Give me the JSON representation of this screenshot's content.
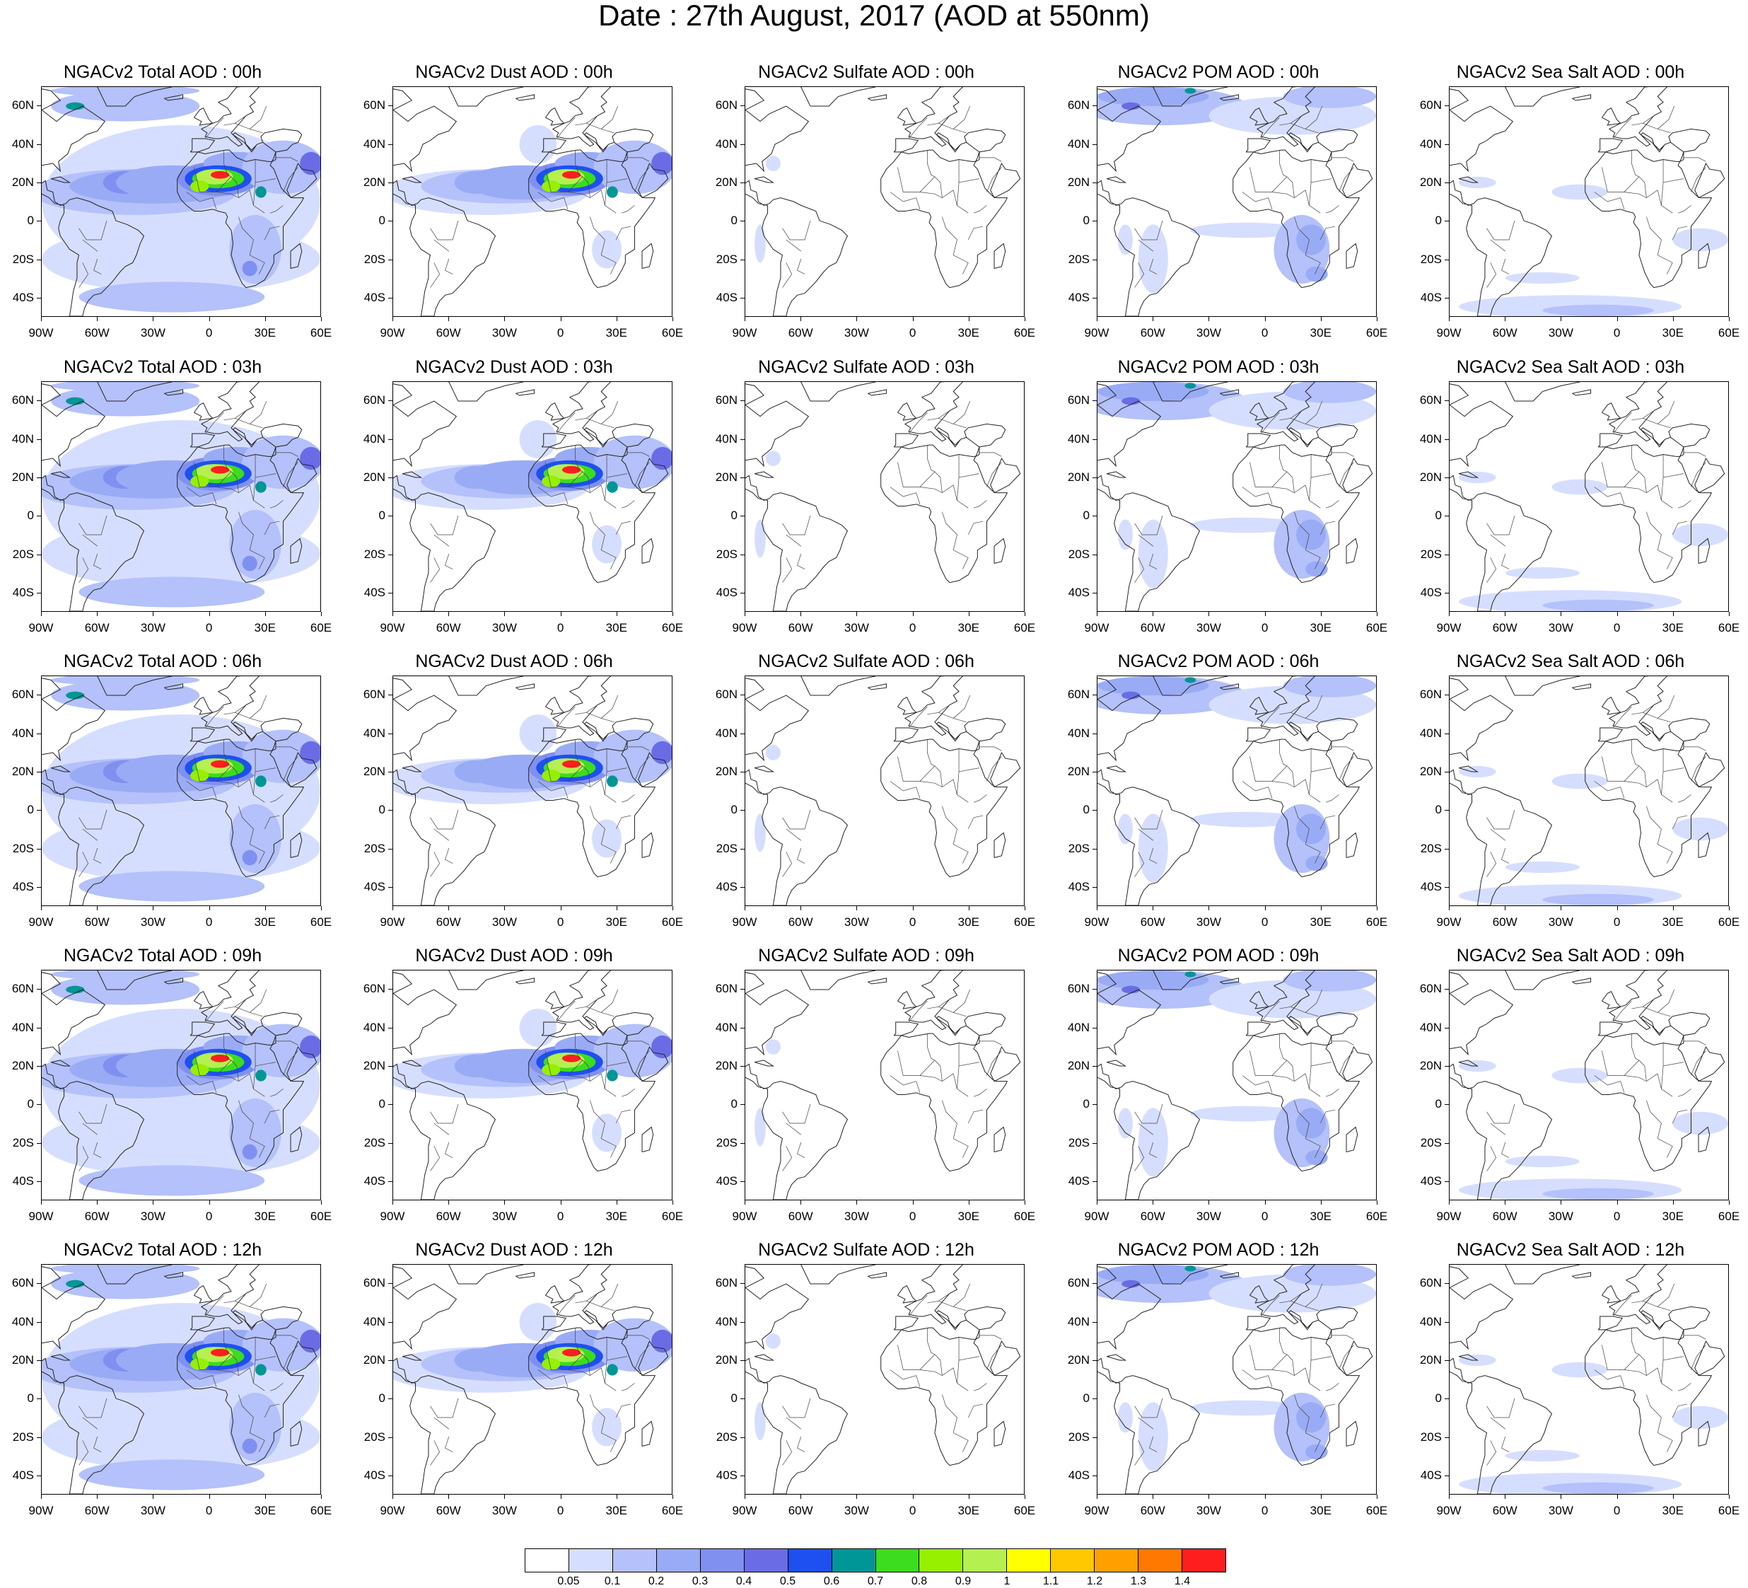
{
  "title": "Date : 27th August, 2017 (AOD at 550nm)",
  "panels": [
    [
      "NGACv2 Total AOD : 00h",
      "NGACv2 Dust AOD : 00h",
      "NGACv2 Sulfate AOD : 00h",
      "NGACv2 POM AOD : 00h",
      "NGACv2 Sea Salt AOD : 00h"
    ],
    [
      "NGACv2 Total AOD : 03h",
      "NGACv2 Dust AOD : 03h",
      "NGACv2 Sulfate AOD : 03h",
      "NGACv2 POM AOD : 03h",
      "NGACv2 Sea Salt AOD : 03h"
    ],
    [
      "NGACv2 Total AOD : 06h",
      "NGACv2 Dust AOD : 06h",
      "NGACv2 Sulfate AOD : 06h",
      "NGACv2 POM AOD : 06h",
      "NGACv2 Sea Salt AOD : 06h"
    ],
    [
      "NGACv2 Total AOD : 09h",
      "NGACv2 Dust AOD : 09h",
      "NGACv2 Sulfate AOD : 09h",
      "NGACv2 POM AOD : 09h",
      "NGACv2 Sea Salt  AOD : 09h"
    ],
    [
      "NGACv2 Total AOD  : 12h",
      "NGACv2 Dust AOD : 12h",
      "NGACv2 Sulfate AOD : 12h",
      "NGACv2 POM  AOD : 12h",
      "NGACv2 Sea Salt  AOD : 12h"
    ]
  ],
  "lat_labels": [
    "60N",
    "40N",
    "20N",
    "0",
    "20S",
    "40S"
  ],
  "lat_values": [
    60,
    40,
    20,
    0,
    -20,
    -40
  ],
  "lat_range": [
    -50,
    70
  ],
  "lon_labels": [
    "90W",
    "60W",
    "30W",
    "0",
    "30E",
    "60E"
  ],
  "lon_values": [
    -90,
    -60,
    -30,
    0,
    30,
    60
  ],
  "lon_range": [
    -90,
    60
  ],
  "colorbar": {
    "labels": [
      "0.05",
      "0.1",
      "0.2",
      "0.3",
      "0.4",
      "0.5",
      "0.6",
      "0.7",
      "0.8",
      "0.9",
      "1",
      "1.1",
      "1.2",
      "1.3",
      "1.4"
    ],
    "colors": [
      "#ffffff",
      "#d6deff",
      "#b4c1fa",
      "#9aabf5",
      "#8090f0",
      "#6a6ce6",
      "#1e50f0",
      "#009696",
      "#3cdc1e",
      "#96f000",
      "#b4f050",
      "#ffff00",
      "#ffc800",
      "#ffa000",
      "#ff7800",
      "#ff1e1e"
    ]
  }
}
